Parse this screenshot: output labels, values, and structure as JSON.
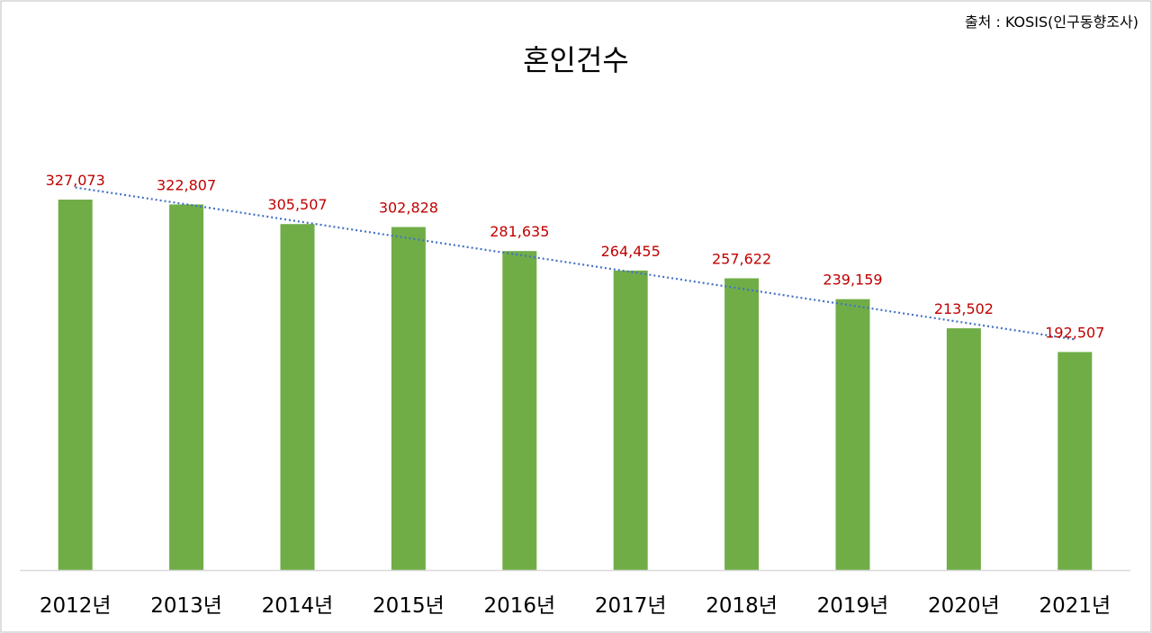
{
  "chart_data": {
    "type": "bar",
    "title": "혼인건수",
    "source": "출처 : KOSIS(인구동향조사)",
    "categories": [
      "2012년",
      "2013년",
      "2014년",
      "2015년",
      "2016년",
      "2017년",
      "2018년",
      "2019년",
      "2020년",
      "2021년"
    ],
    "values": [
      327073,
      322807,
      305507,
      302828,
      281635,
      264455,
      257622,
      239159,
      213502,
      192507
    ],
    "value_labels": [
      "327,073",
      "322,807",
      "305,507",
      "302,828",
      "281,635",
      "264,455",
      "257,622",
      "239,159",
      "213,502",
      "192,507"
    ],
    "trendline": "linear",
    "xlabel": "",
    "ylabel": "",
    "grid": false,
    "colors": {
      "bar": "#70ad47",
      "label": "#c00000",
      "trendline": "#4472c4",
      "axis": "#d9d9d9",
      "text": "#000000",
      "border": "#bfbfbf"
    }
  }
}
